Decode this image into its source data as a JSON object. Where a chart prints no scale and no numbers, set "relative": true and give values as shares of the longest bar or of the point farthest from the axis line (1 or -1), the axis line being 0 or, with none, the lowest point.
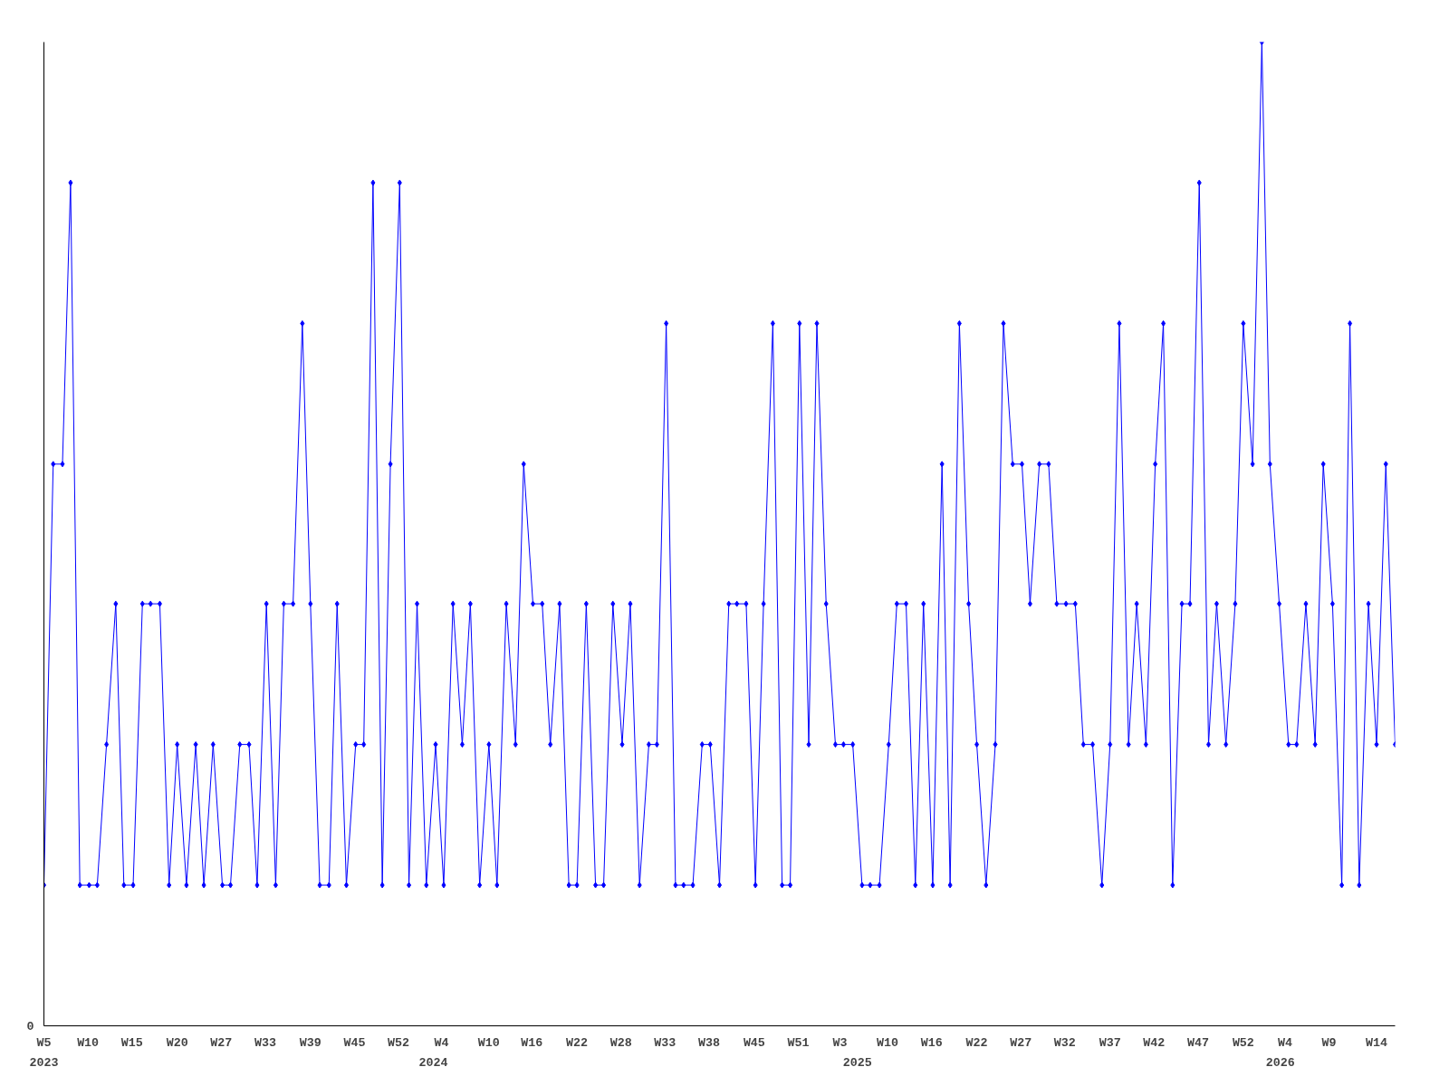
{
  "chart_data": {
    "type": "line",
    "relative": true,
    "marker": "diamond",
    "line_style": "solid",
    "grid": false,
    "annotations": [
      "0"
    ],
    "x": [
      "2023-01-30",
      "2023-02-07",
      "2023-02-15",
      "2023-02-22",
      "2023-03-02",
      "2023-03-10",
      "2023-03-17",
      "2023-03-25",
      "2023-04-02",
      "2023-04-09",
      "2023-04-17",
      "2023-04-25",
      "2023-05-02",
      "2023-05-10",
      "2023-05-18",
      "2023-05-25",
      "2023-06-02",
      "2023-06-10",
      "2023-06-17",
      "2023-06-25",
      "2023-07-03",
      "2023-07-10",
      "2023-07-18",
      "2023-07-26",
      "2023-08-02",
      "2023-08-10",
      "2023-08-18",
      "2023-08-25",
      "2023-09-02",
      "2023-09-10",
      "2023-09-17",
      "2023-09-25",
      "2023-10-03",
      "2023-10-10",
      "2023-10-18",
      "2023-10-26",
      "2023-11-02",
      "2023-11-10",
      "2023-11-18",
      "2023-11-25",
      "2023-12-03",
      "2023-12-11",
      "2023-12-18",
      "2023-12-26",
      "2024-01-03",
      "2024-01-10",
      "2024-01-18",
      "2024-01-26",
      "2024-02-02",
      "2024-02-10",
      "2024-02-18",
      "2024-02-25",
      "2024-03-04",
      "2024-03-12",
      "2024-03-19",
      "2024-03-27",
      "2024-04-04",
      "2024-04-11",
      "2024-04-19",
      "2024-04-27",
      "2024-05-04",
      "2024-05-12",
      "2024-05-20",
      "2024-05-27",
      "2024-06-04",
      "2024-06-12",
      "2024-06-19",
      "2024-06-27",
      "2024-07-05",
      "2024-07-12",
      "2024-07-20",
      "2024-07-28",
      "2024-08-04",
      "2024-08-12",
      "2024-08-20",
      "2024-08-27",
      "2024-09-04",
      "2024-09-12",
      "2024-09-19",
      "2024-09-27",
      "2024-10-05",
      "2024-10-12",
      "2024-10-20",
      "2024-10-28",
      "2024-11-04",
      "2024-11-12",
      "2024-11-20",
      "2024-11-27",
      "2024-12-05",
      "2024-12-13",
      "2024-12-20",
      "2024-12-28",
      "2025-01-05",
      "2025-01-12",
      "2025-01-20",
      "2025-01-28",
      "2025-02-04",
      "2025-02-12",
      "2025-02-20",
      "2025-02-27",
      "2025-03-07",
      "2025-03-15",
      "2025-03-22",
      "2025-03-30",
      "2025-04-07",
      "2025-04-14",
      "2025-04-22",
      "2025-04-30",
      "2025-05-07",
      "2025-05-15",
      "2025-05-23",
      "2025-05-30",
      "2025-06-07",
      "2025-06-15",
      "2025-06-22",
      "2025-06-30",
      "2025-07-08",
      "2025-07-15",
      "2025-07-23",
      "2025-07-31",
      "2025-08-07",
      "2025-08-15",
      "2025-08-23",
      "2025-08-30",
      "2025-09-07",
      "2025-09-15",
      "2025-09-22",
      "2025-09-30",
      "2025-10-08",
      "2025-10-15",
      "2025-10-23",
      "2025-10-31",
      "2025-11-07",
      "2025-11-15",
      "2025-11-23",
      "2025-11-30",
      "2025-12-08",
      "2025-12-16",
      "2025-12-23",
      "2025-12-31",
      "2026-01-08",
      "2026-01-15",
      "2026-01-23",
      "2026-01-31",
      "2026-02-07",
      "2026-02-15",
      "2026-02-23",
      "2026-03-02",
      "2026-03-10",
      "2026-03-18",
      "2026-03-25",
      "2026-04-02",
      "2026-04-10"
    ],
    "series": [
      {
        "color": "#0000ff",
        "values": [
          0.143,
          0.571,
          0.571,
          0.857,
          0.143,
          0.143,
          0.143,
          0.286,
          0.429,
          0.143,
          0.143,
          0.429,
          0.429,
          0.429,
          0.143,
          0.286,
          0.143,
          0.286,
          0.143,
          0.286,
          0.143,
          0.143,
          0.286,
          0.286,
          0.143,
          0.429,
          0.143,
          0.429,
          0.429,
          0.714,
          0.429,
          0.143,
          0.143,
          0.429,
          0.143,
          0.286,
          0.286,
          0.857,
          0.143,
          0.571,
          0.857,
          0.143,
          0.429,
          0.143,
          0.286,
          0.143,
          0.429,
          0.286,
          0.429,
          0.143,
          0.286,
          0.143,
          0.429,
          0.286,
          0.571,
          0.429,
          0.429,
          0.286,
          0.429,
          0.143,
          0.143,
          0.429,
          0.143,
          0.143,
          0.429,
          0.286,
          0.429,
          0.143,
          0.286,
          0.286,
          0.714,
          0.143,
          0.143,
          0.143,
          0.286,
          0.286,
          0.143,
          0.429,
          0.429,
          0.429,
          0.143,
          0.429,
          0.714,
          0.143,
          0.143,
          0.714,
          0.286,
          0.714,
          0.429,
          0.286,
          0.286,
          0.286,
          0.143,
          0.143,
          0.143,
          0.286,
          0.429,
          0.429,
          0.143,
          0.429,
          0.143,
          0.571,
          0.143,
          0.714,
          0.429,
          0.286,
          0.143,
          0.286,
          0.714,
          0.571,
          0.571,
          0.429,
          0.571,
          0.571,
          0.429,
          0.429,
          0.429,
          0.286,
          0.286,
          0.143,
          0.286,
          0.714,
          0.286,
          0.429,
          0.286,
          0.571,
          0.714,
          0.143,
          0.429,
          0.429,
          0.857,
          0.286,
          0.429,
          0.286,
          0.429,
          0.714,
          0.571,
          1,
          0.571,
          0.429,
          0.286,
          0.286,
          0.429,
          0.286,
          0.571,
          0.429,
          0.143,
          0.714,
          0.143,
          0.429,
          0.286,
          0.571,
          0.286
        ]
      }
    ],
    "xlim": [
      "2023-01-30",
      "2026-04-10"
    ],
    "xticks": [
      {
        "value": "2023-01-30",
        "label": "W5"
      },
      {
        "value": "2023-03-09",
        "label": "W10"
      },
      {
        "value": "2023-04-16",
        "label": "W15"
      },
      {
        "value": "2023-05-25",
        "label": "W20"
      },
      {
        "value": "2023-07-02",
        "label": "W27"
      },
      {
        "value": "2023-08-09",
        "label": "W33"
      },
      {
        "value": "2023-09-17",
        "label": "W39"
      },
      {
        "value": "2023-10-25",
        "label": "W45"
      },
      {
        "value": "2023-12-02",
        "label": "W52"
      },
      {
        "value": "2024-01-08",
        "label": "W4"
      },
      {
        "value": "2024-02-18",
        "label": "W10"
      },
      {
        "value": "2024-03-26",
        "label": "W16"
      },
      {
        "value": "2024-05-04",
        "label": "W22"
      },
      {
        "value": "2024-06-11",
        "label": "W28"
      },
      {
        "value": "2024-07-19",
        "label": "W33"
      },
      {
        "value": "2024-08-26",
        "label": "W38"
      },
      {
        "value": "2024-10-04",
        "label": "W45"
      },
      {
        "value": "2024-11-11",
        "label": "W51"
      },
      {
        "value": "2024-12-17",
        "label": "W3"
      },
      {
        "value": "2025-01-27",
        "label": "W10"
      },
      {
        "value": "2025-03-06",
        "label": "W16"
      },
      {
        "value": "2025-04-14",
        "label": "W22"
      },
      {
        "value": "2025-05-22",
        "label": "W27"
      },
      {
        "value": "2025-06-29",
        "label": "W32"
      },
      {
        "value": "2025-08-07",
        "label": "W37"
      },
      {
        "value": "2025-09-14",
        "label": "W42"
      },
      {
        "value": "2025-10-22",
        "label": "W47"
      },
      {
        "value": "2025-11-30",
        "label": "W52"
      },
      {
        "value": "2026-01-05",
        "label": "W4"
      },
      {
        "value": "2026-02-12",
        "label": "W9"
      },
      {
        "value": "2026-03-25",
        "label": "W14"
      }
    ],
    "x2lim": [
      "2023-01-30",
      "2026-04-10"
    ],
    "x2ticks": [
      {
        "value": "2023-01-30",
        "label": "2023"
      },
      {
        "value": "2024-01-01",
        "label": "2024"
      },
      {
        "value": "2025-01-01",
        "label": "2025"
      },
      {
        "value": "2026-01-01",
        "label": "2026"
      }
    ]
  }
}
